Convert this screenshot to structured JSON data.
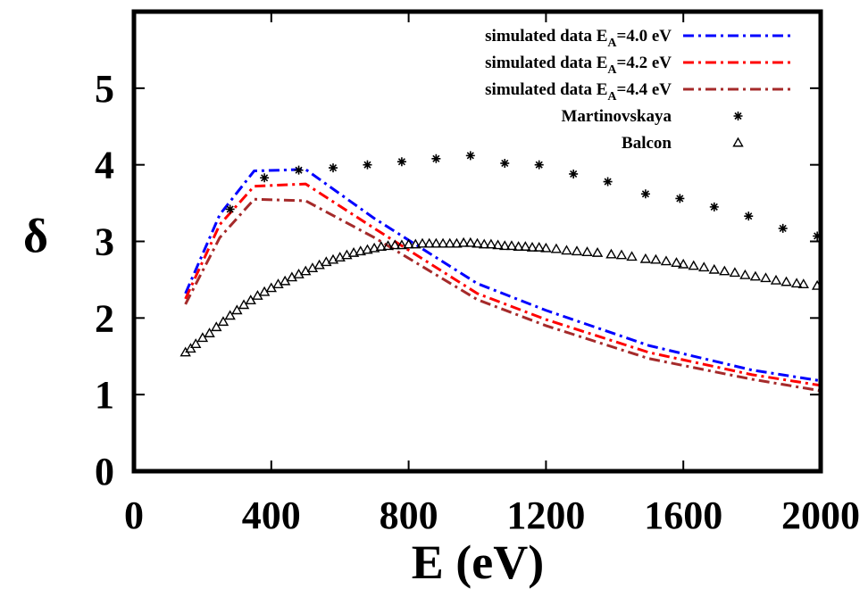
{
  "chart_data": {
    "type": "line",
    "xlabel": "E (eV)",
    "ylabel": "δ",
    "xlim": [
      0,
      2000
    ],
    "ylim": [
      0,
      6
    ],
    "xticks": [
      "0",
      "400",
      "800",
      "1200",
      "1600",
      "2000"
    ],
    "yticks": [
      "0",
      "1",
      "2",
      "3",
      "4",
      "5"
    ],
    "grid": false,
    "legend_position": "top-right",
    "series": [
      {
        "name": "simulated data E_A=4.0 eV",
        "legend_prefix": "simulated data E",
        "legend_sub": "A",
        "legend_suffix": "=4.0 eV",
        "color": "#0000ff",
        "style": "dash-dot",
        "x": [
          150,
          250,
          350,
          500,
          700,
          1000,
          1200,
          1500,
          1800,
          2000
        ],
        "y": [
          2.32,
          3.35,
          3.92,
          3.94,
          3.3,
          2.45,
          2.1,
          1.64,
          1.32,
          1.18
        ]
      },
      {
        "name": "simulated data E_A=4.2 eV",
        "legend_prefix": "simulated data E",
        "legend_sub": "A",
        "legend_suffix": "=4.2 eV",
        "color": "#ff0000",
        "style": "dash-dot",
        "x": [
          150,
          250,
          350,
          500,
          700,
          1000,
          1200,
          1500,
          1800,
          2000
        ],
        "y": [
          2.25,
          3.22,
          3.72,
          3.75,
          3.17,
          2.32,
          1.98,
          1.55,
          1.26,
          1.12
        ]
      },
      {
        "name": "simulated data E_A=4.4 eV",
        "legend_prefix": "simulated data E",
        "legend_sub": "A",
        "legend_suffix": "=4.4 eV",
        "color": "#a52a2a",
        "style": "dash-dot",
        "x": [
          150,
          250,
          350,
          500,
          700,
          1000,
          1200,
          1500,
          1800,
          2000
        ],
        "y": [
          2.18,
          3.05,
          3.55,
          3.53,
          3.05,
          2.24,
          1.9,
          1.47,
          1.2,
          1.05
        ]
      },
      {
        "name": "Martinovskaya",
        "color": "#000000",
        "style": "marker-asterisk",
        "x": [
          280,
          380,
          480,
          580,
          680,
          780,
          880,
          980,
          1080,
          1180,
          1280,
          1380,
          1490,
          1590,
          1690,
          1790,
          1890,
          1990
        ],
        "y": [
          3.42,
          3.83,
          3.93,
          3.96,
          4.0,
          4.04,
          4.08,
          4.12,
          4.02,
          4.0,
          3.88,
          3.78,
          3.62,
          3.56,
          3.45,
          3.33,
          3.17,
          3.07
        ]
      },
      {
        "name": "Balcon",
        "color": "#000000",
        "style": "marker-triangle",
        "x": [
          150,
          165,
          180,
          200,
          220,
          240,
          260,
          280,
          300,
          320,
          340,
          360,
          380,
          400,
          420,
          440,
          460,
          480,
          500,
          520,
          540,
          560,
          580,
          600,
          620,
          640,
          660,
          680,
          700,
          720,
          740,
          760,
          780,
          800,
          820,
          840,
          860,
          880,
          900,
          920,
          940,
          960,
          980,
          1000,
          1020,
          1040,
          1060,
          1080,
          1100,
          1120,
          1140,
          1160,
          1180,
          1200,
          1230,
          1260,
          1290,
          1320,
          1350,
          1390,
          1420,
          1450,
          1490,
          1520,
          1550,
          1580,
          1600,
          1630,
          1660,
          1690,
          1720,
          1750,
          1780,
          1810,
          1840,
          1870,
          1900,
          1930,
          1950,
          1990
        ],
        "y": [
          1.55,
          1.6,
          1.66,
          1.74,
          1.8,
          1.88,
          1.95,
          2.03,
          2.1,
          2.17,
          2.23,
          2.29,
          2.34,
          2.39,
          2.44,
          2.48,
          2.53,
          2.57,
          2.61,
          2.65,
          2.69,
          2.73,
          2.76,
          2.79,
          2.82,
          2.85,
          2.87,
          2.89,
          2.91,
          2.93,
          2.94,
          2.95,
          2.95,
          2.96,
          2.96,
          2.97,
          2.97,
          2.97,
          2.97,
          2.97,
          2.97,
          2.98,
          2.98,
          2.97,
          2.96,
          2.96,
          2.95,
          2.94,
          2.94,
          2.93,
          2.93,
          2.92,
          2.92,
          2.91,
          2.9,
          2.88,
          2.87,
          2.86,
          2.85,
          2.83,
          2.82,
          2.8,
          2.77,
          2.76,
          2.74,
          2.72,
          2.7,
          2.68,
          2.66,
          2.63,
          2.61,
          2.59,
          2.56,
          2.54,
          2.52,
          2.49,
          2.47,
          2.45,
          2.44,
          2.42
        ]
      }
    ]
  }
}
